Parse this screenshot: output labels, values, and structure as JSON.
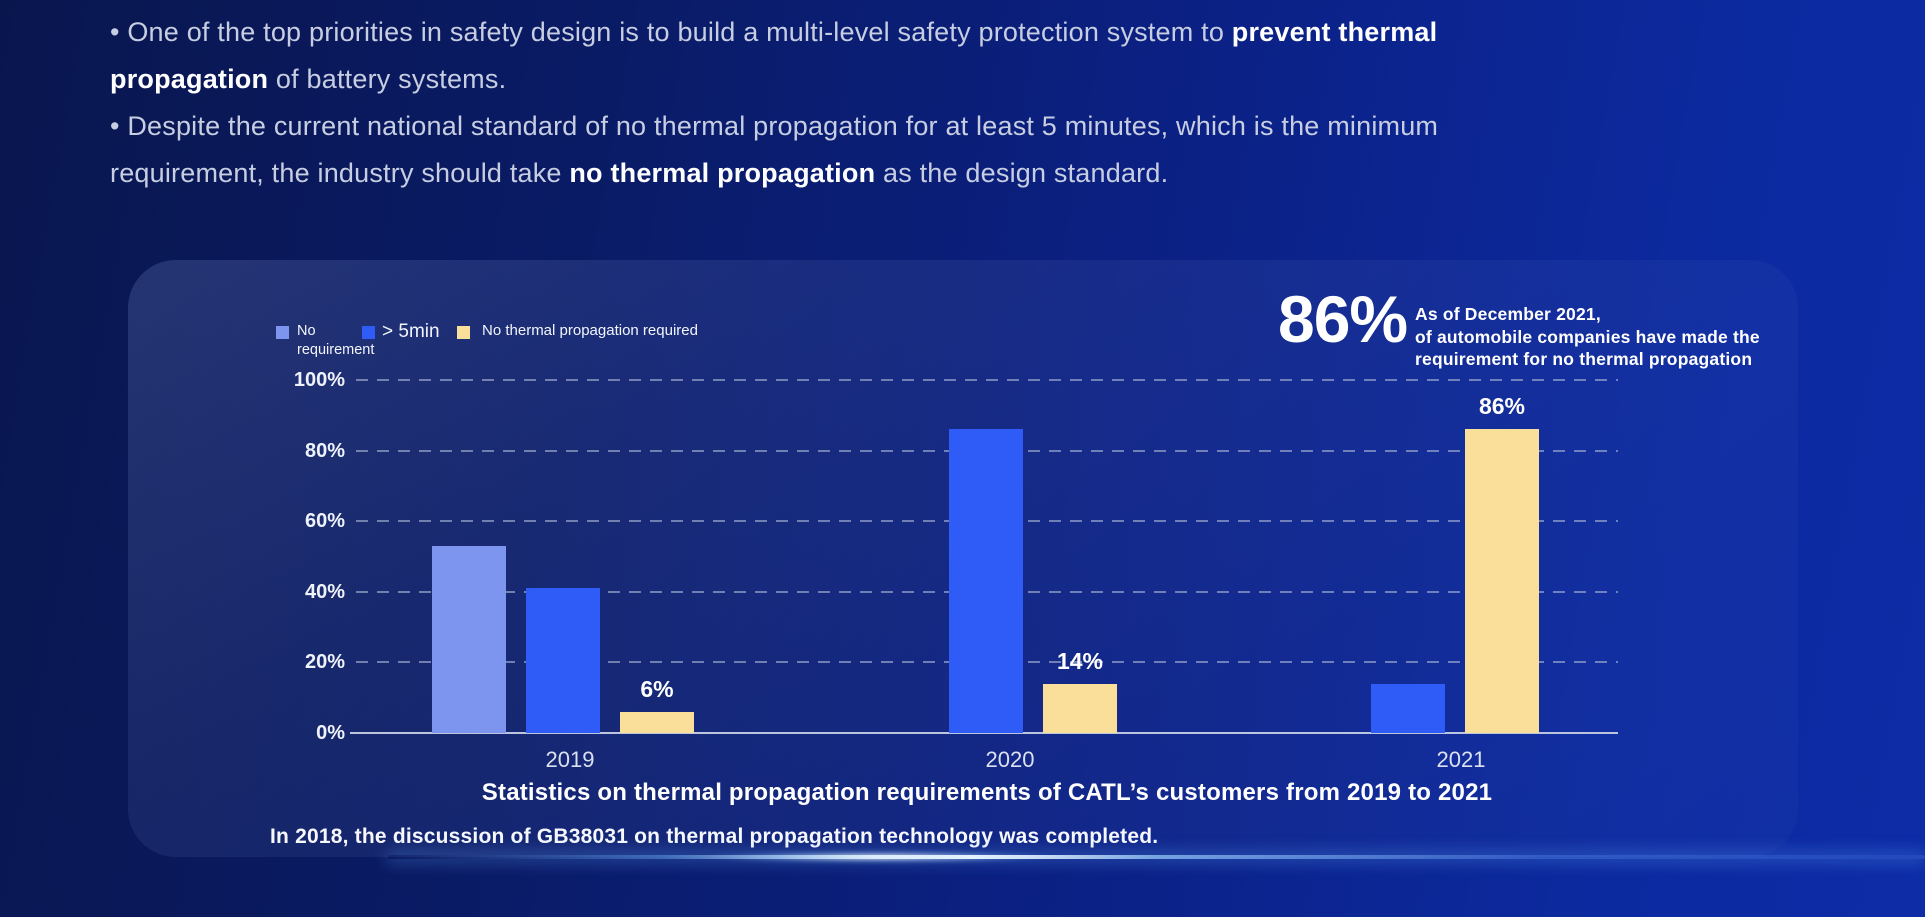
{
  "bullets": {
    "lines": [
      [
        {
          "t": "• One of the top priorities in safety design is to build a multi-level safety protection system to ",
          "b": false
        },
        {
          "t": "prevent thermal",
          "b": true
        }
      ],
      [
        {
          "t": "propagation",
          "b": true
        },
        {
          "t": " of battery systems.",
          "b": false
        }
      ],
      [
        {
          "t": "• Despite the current national standard of no thermal propagation for at least 5 minutes, which is the minimum",
          "b": false
        }
      ],
      [
        {
          "t": "requirement, the industry should take ",
          "b": false
        },
        {
          "t": "no thermal propagation",
          "b": true
        },
        {
          "t": " as the design standard.",
          "b": false
        }
      ]
    ]
  },
  "callout": {
    "value": "86%",
    "lines": [
      "As of December 2021,",
      "of automobile companies have made the",
      "requirement for no thermal propagation"
    ]
  },
  "legend": [
    {
      "label": "No requirement",
      "color": "#7d95ee"
    },
    {
      "label": "> 5min",
      "color": "#2f5bf7"
    },
    {
      "label": "No thermal propagation required",
      "color": "#fadf9a"
    }
  ],
  "chart_data": {
    "type": "bar",
    "title": "Statistics on thermal propagation requirements of CATL’s customers from 2019 to 2021",
    "categories": [
      "2019",
      "2020",
      "2021"
    ],
    "series": [
      {
        "name": "No requirement",
        "color": "#7d95ee",
        "values": [
          53,
          0,
          0
        ],
        "labels": [
          "",
          "",
          ""
        ]
      },
      {
        "name": "> 5min",
        "color": "#2f5bf7",
        "values": [
          41,
          86,
          14
        ],
        "labels": [
          "",
          "",
          ""
        ]
      },
      {
        "name": "No thermal propagation required",
        "color": "#fadf9a",
        "values": [
          6,
          14,
          86
        ],
        "labels": [
          "6%",
          "14%",
          "86%"
        ]
      }
    ],
    "yticks": [
      {
        "label": "0%",
        "value": 0
      },
      {
        "label": "20%",
        "value": 20
      },
      {
        "label": "40%",
        "value": 40
      },
      {
        "label": "60%",
        "value": 60
      },
      {
        "label": "80%",
        "value": 80
      },
      {
        "label": "100%",
        "value": 100
      }
    ],
    "ylim": [
      0,
      100
    ],
    "grid": "horizontal-dashed",
    "legend_position": "top-left"
  },
  "footnote": "In 2018, the discussion of GB38031 on thermal propagation technology was completed.",
  "colors": {
    "background_left": "#09164e",
    "background_right": "#0d2ca6",
    "accent_light_blue": "#7d95ee",
    "accent_blue": "#2f5bf7",
    "accent_yellow": "#fadf9a"
  }
}
